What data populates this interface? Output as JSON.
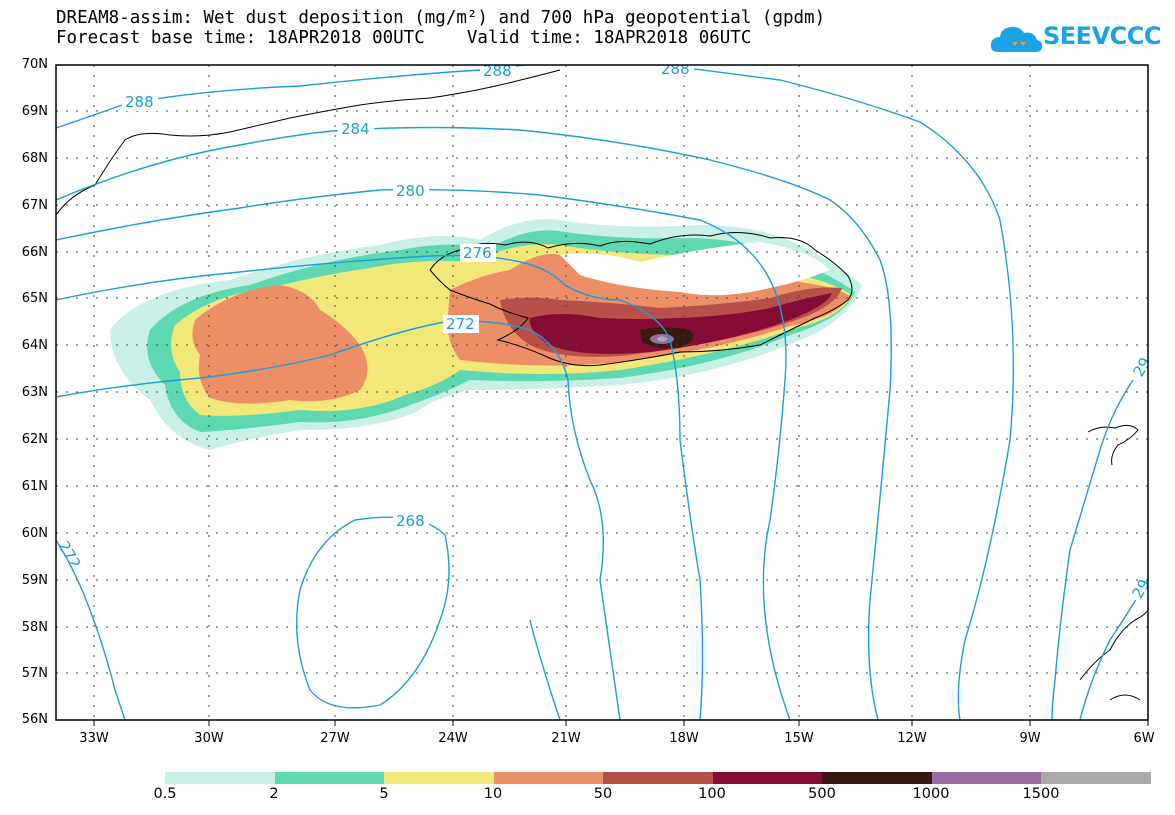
{
  "header": {
    "line1": "DREAM8-assim: Wet dust deposition (mg/m²) and 700 hPa geopotential (gpdm)",
    "line2": "Forecast base time: 18APR2018 00UTC    Valid time: 18APR2018 06UTC"
  },
  "logo": {
    "text": "SEEVCCC",
    "color": "#1aa3e8"
  },
  "map": {
    "lat_labels": [
      "70N",
      "69N",
      "68N",
      "67N",
      "66N",
      "65N",
      "64N",
      "63N",
      "62N",
      "61N",
      "60N",
      "59N",
      "58N",
      "57N",
      "56N"
    ],
    "lon_labels": [
      "33W",
      "30W",
      "27W",
      "24W",
      "21W",
      "18W",
      "15W",
      "12W",
      "9W",
      "6W"
    ],
    "contour_color": "#1a9ee0",
    "contour_labels": [
      "288",
      "288",
      "288",
      "284",
      "280",
      "276",
      "272",
      "268",
      "272",
      "29",
      "29"
    ]
  },
  "colorbar": {
    "colors": [
      "#c8f0e6",
      "#5ed8b0",
      "#f2e87a",
      "#ec8e66",
      "#b8504a",
      "#850c34",
      "#3a1a10",
      "#9a6aa0",
      "#aaaaaa"
    ],
    "labels": [
      "0.5",
      "2",
      "5",
      "10",
      "50",
      "100",
      "500",
      "1000",
      "1500"
    ]
  }
}
